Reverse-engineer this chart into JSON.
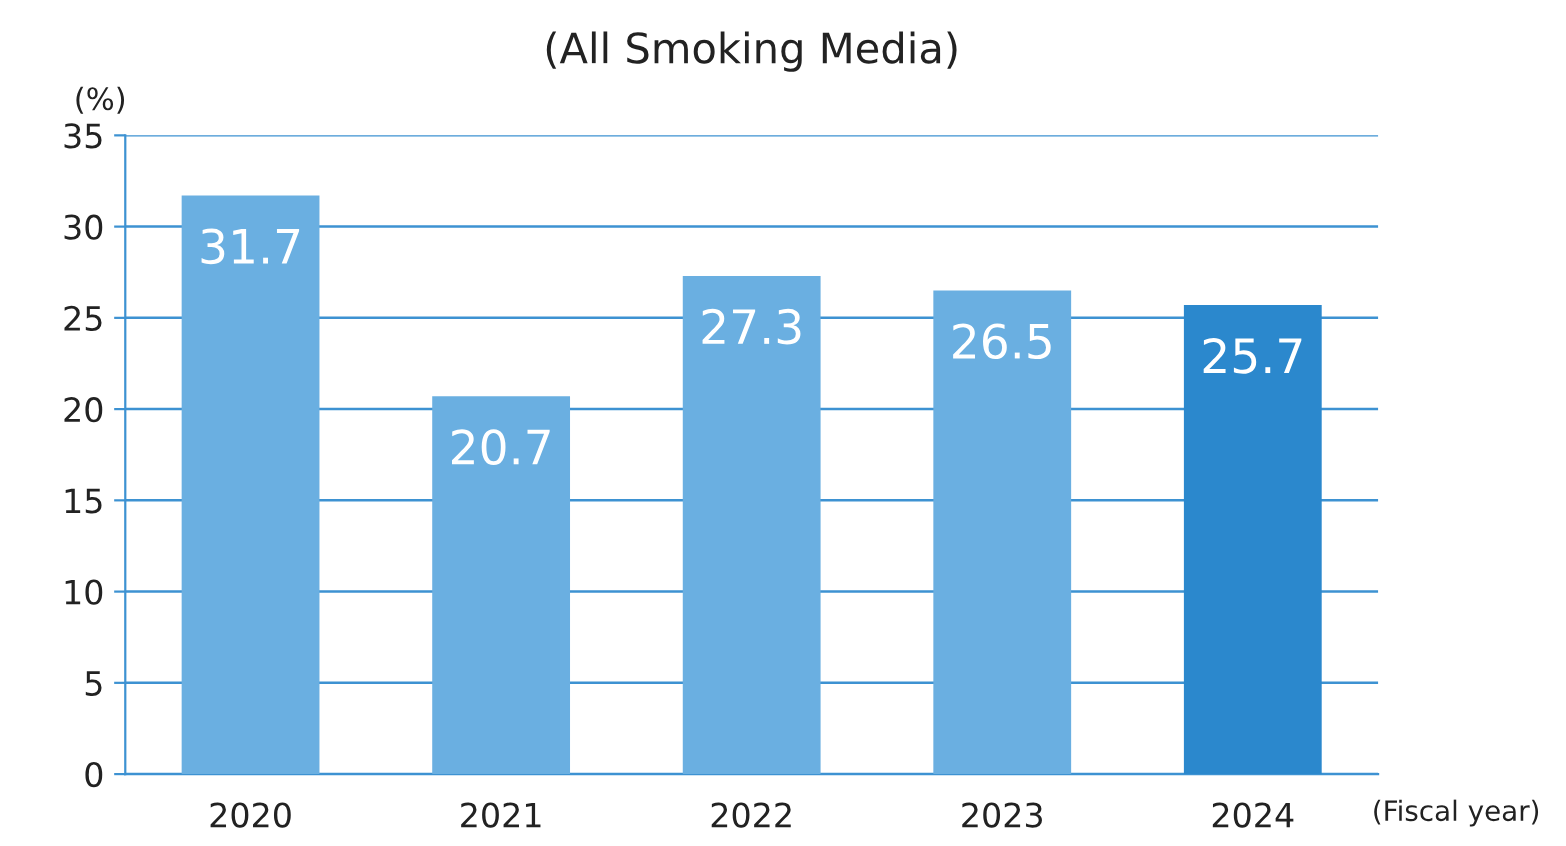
{
  "chart_data": {
    "type": "bar",
    "title": "(All Smoking Media)",
    "ylabel": "(%)",
    "xlabel": "(Fiscal year)",
    "categories": [
      "2020",
      "2021",
      "2022",
      "2023",
      "2024"
    ],
    "values": [
      31.7,
      20.7,
      27.3,
      26.5,
      25.7
    ],
    "colors": [
      "#6aafe1",
      "#6aafe1",
      "#6aafe1",
      "#6aafe1",
      "#2b88cd"
    ],
    "ylim": [
      0,
      35
    ],
    "yticks": [
      0,
      5,
      10,
      15,
      20,
      25,
      30,
      35
    ],
    "grid": "y",
    "data_labels": true
  }
}
